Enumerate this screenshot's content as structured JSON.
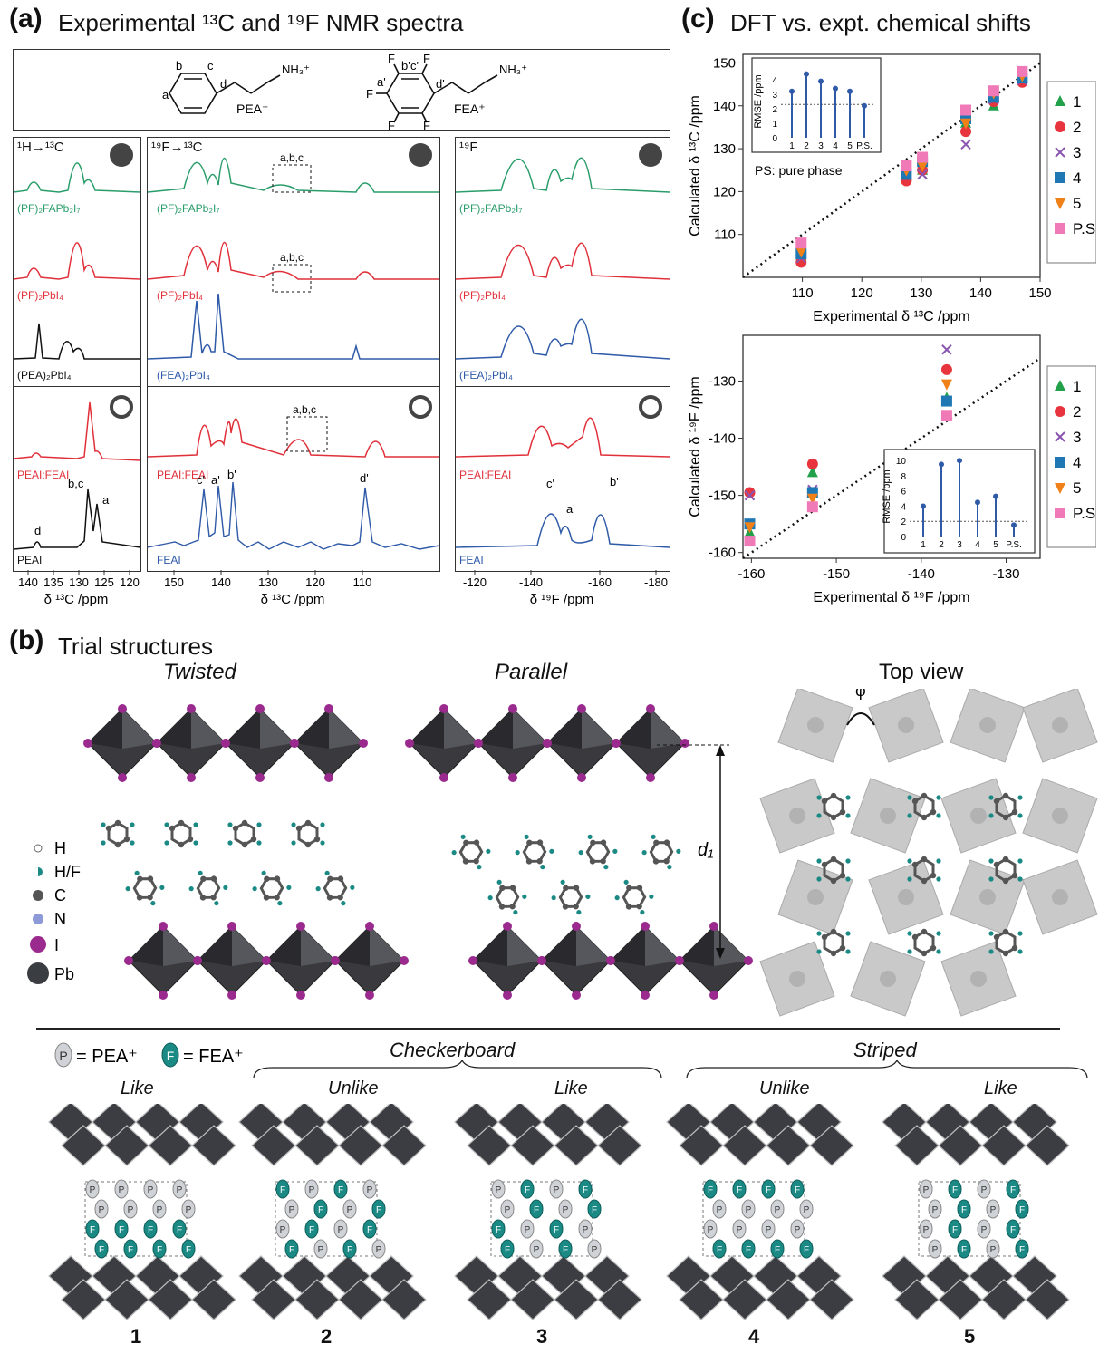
{
  "panel_a": {
    "label": "(a)",
    "title": "Experimental ¹³C and ¹⁹F NMR spectra",
    "molecules": {
      "pea": {
        "name": "PEA⁺",
        "amine": "NH₃⁺",
        "atoms": [
          "a",
          "b",
          "c",
          "d"
        ]
      },
      "fea": {
        "name": "FEA⁺",
        "amine": "NH₃⁺",
        "atoms": [
          "a'",
          "b'",
          "c'",
          "d'"
        ],
        "substituent": "F"
      }
    },
    "column1": {
      "header": "¹H→¹³C",
      "xlabel": "δ ¹³C /ppm",
      "ticks": [
        "140",
        "135",
        "130",
        "125",
        "120"
      ],
      "top_traces": [
        "(PF)₂FAPb₂I₇",
        "(PF)₂PbI₄",
        "(PEA)₂PbI₄"
      ],
      "bottom_traces": [
        "PEAI:FEAI",
        "PEAI"
      ],
      "peak_labels": [
        "d",
        "b,c",
        "a"
      ]
    },
    "column2": {
      "header": "¹⁹F→¹³C",
      "xlabel": "δ ¹³C /ppm",
      "ticks": [
        "150",
        "140",
        "130",
        "120",
        "110"
      ],
      "top_traces": [
        "(PF)₂FAPb₂I₇",
        "(PF)₂PbI₄",
        "(FEA)₂PbI₄"
      ],
      "bottom_traces": [
        "PEAI:FEAI",
        "FEAI"
      ],
      "box_label": "a,b,c",
      "peak_labels": [
        "c'",
        "a'",
        "b'",
        "d'"
      ]
    },
    "column3": {
      "header": "¹⁹F",
      "xlabel": "δ ¹⁹F /ppm",
      "ticks": [
        "-120",
        "-140",
        "-160",
        "-180"
      ],
      "top_traces": [
        "(PF)₂FAPb₂I₇",
        "(PF)₂PbI₄",
        "(FEA)₂PbI₄"
      ],
      "bottom_traces": [
        "PEAI:FEAI",
        "FEAI"
      ],
      "peak_labels": [
        "c'",
        "a'",
        "b'"
      ]
    },
    "colors": {
      "green": "#2a9d6a",
      "red": "#e0303a",
      "black": "#111111",
      "blue": "#2f5aa8"
    }
  },
  "panel_b": {
    "label": "(b)",
    "title": "Trial structures",
    "views": [
      "Twisted",
      "Parallel",
      "Top view"
    ],
    "angle_label": "φ",
    "distance_label": "d₁",
    "legend": [
      "H",
      "H/F",
      "C",
      "N",
      "I",
      "Pb"
    ],
    "key": {
      "p": "P",
      "p_text": "= PEA⁺",
      "f": "F",
      "f_text": "= FEA⁺"
    },
    "groups": [
      "Checkerboard",
      "Striped"
    ],
    "arrangements": [
      "Like",
      "Unlike",
      "Like",
      "Unlike",
      "Like"
    ],
    "numbers": [
      "1",
      "2",
      "3",
      "4",
      "5"
    ]
  },
  "panel_c": {
    "label": "(c)",
    "title": "DFT vs. expt. chemical shifts",
    "legend": [
      "1",
      "2",
      "3",
      "4",
      "5",
      "P.S."
    ],
    "colors": [
      "#22a04a",
      "#e8343c",
      "#8a55b0",
      "#1f78b4",
      "#f08018",
      "#f07ab8"
    ],
    "inset_note": "PS: pure phase"
  },
  "chart_data": [
    {
      "type": "scatter",
      "title": "",
      "xlabel": "Experimental δ ¹³C /ppm",
      "ylabel": "Calculated δ ¹³C /ppm",
      "xlim": [
        100,
        150
      ],
      "ylim": [
        100,
        152
      ],
      "xticks": [
        "110",
        "120",
        "130",
        "140",
        "150"
      ],
      "yticks": [
        "110",
        "120",
        "130",
        "140",
        "150"
      ],
      "experimental_x": [
        109.8,
        127.5,
        130.2,
        137.5,
        142.2,
        147.0
      ],
      "series": [
        {
          "name": "1",
          "y": [
            105,
            124,
            125,
            136,
            140,
            146
          ]
        },
        {
          "name": "2",
          "y": [
            103.5,
            122.5,
            125,
            134,
            141,
            145.5
          ]
        },
        {
          "name": "3",
          "y": [
            104.5,
            124.5,
            124,
            131,
            141.5,
            146
          ]
        },
        {
          "name": "4",
          "y": [
            105.5,
            124,
            127,
            137,
            142,
            146.5
          ]
        },
        {
          "name": "5",
          "y": [
            106,
            125,
            126,
            136,
            143,
            147
          ]
        },
        {
          "name": "P.S.",
          "y": [
            108,
            126,
            128,
            139,
            143.5,
            148
          ]
        }
      ]
    },
    {
      "type": "bar",
      "title": "",
      "ylabel": "RMSE /ppm",
      "categories": [
        "1",
        "2",
        "3",
        "4",
        "5",
        "P.S."
      ],
      "values": [
        3.2,
        4.4,
        3.9,
        3.4,
        3.2,
        2.2
      ],
      "ylim": [
        0,
        5
      ],
      "yticks": [
        "0",
        "1",
        "2",
        "3",
        "4"
      ],
      "reference": 2.3
    },
    {
      "type": "scatter",
      "title": "",
      "xlabel": "Experimental δ ¹⁹F /ppm",
      "ylabel": "Calculated δ ¹⁹F /ppm",
      "xlim": [
        -161,
        -126
      ],
      "ylim": [
        -161,
        -122
      ],
      "xticks": [
        "-160",
        "-150",
        "-140",
        "-130"
      ],
      "yticks": [
        "-160",
        "-150",
        "-140",
        "-130"
      ],
      "experimental_x": [
        -160.2,
        -152.8,
        -137.0
      ],
      "series": [
        {
          "name": "1",
          "y": [
            -156.5,
            -146,
            -133
          ]
        },
        {
          "name": "2",
          "y": [
            -149.5,
            -144.5,
            -128
          ]
        },
        {
          "name": "3",
          "y": [
            -150,
            -149,
            -124.5
          ]
        },
        {
          "name": "4",
          "y": [
            -155,
            -149.5,
            -133.5
          ]
        },
        {
          "name": "5",
          "y": [
            -155.5,
            -150.5,
            -130.5
          ]
        },
        {
          "name": "P.S.",
          "y": [
            -158,
            -152,
            -136
          ]
        }
      ]
    },
    {
      "type": "bar",
      "title": "",
      "ylabel": "RMSE /ppm",
      "categories": [
        "1",
        "2",
        "3",
        "4",
        "5",
        "P.S."
      ],
      "values": [
        4.0,
        9.5,
        10.0,
        4.5,
        5.3,
        1.5
      ],
      "ylim": [
        0,
        10.5
      ],
      "yticks": [
        "0",
        "2",
        "4",
        "6",
        "8",
        "10"
      ],
      "reference": 2.0
    }
  ]
}
